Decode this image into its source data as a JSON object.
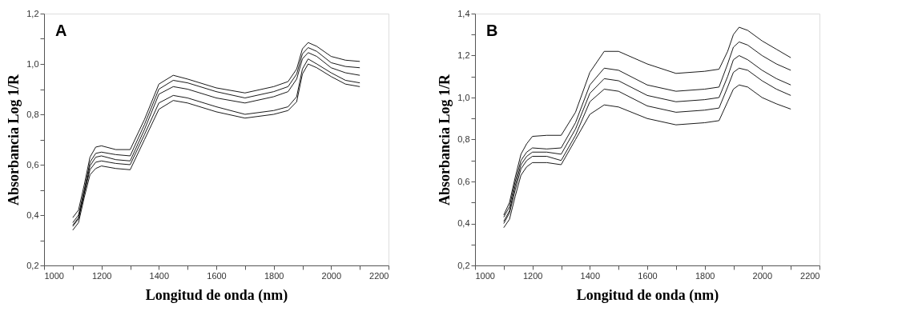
{
  "chart_data": [
    {
      "type": "line",
      "xlabel": "Longitud de onda (nm)",
      "ylabel": "Absorbancia Log 1/R",
      "annotations": [
        "A"
      ],
      "grid": false,
      "legend": false,
      "marker": "none",
      "line_style": "solid",
      "x": [
        1100,
        1120,
        1140,
        1160,
        1180,
        1200,
        1250,
        1300,
        1350,
        1400,
        1450,
        1500,
        1600,
        1700,
        1800,
        1850,
        1880,
        1900,
        1920,
        1950,
        2000,
        2050,
        2100
      ],
      "xlim": [
        1000,
        2200
      ],
      "ylim": [
        0.2,
        1.2
      ],
      "xticks": [
        1000,
        {
          "value": 1100,
          "label": null
        },
        1200,
        {
          "value": 1300,
          "label": null
        },
        1400,
        {
          "value": 1500,
          "label": null
        },
        1600,
        {
          "value": 1700,
          "label": null
        },
        1800,
        {
          "value": 1900,
          "label": null
        },
        2000,
        {
          "value": 2100,
          "label": null
        },
        2200
      ],
      "yticks": [
        {
          "value": 0.2,
          "label": "0,2"
        },
        {
          "value": 0.3,
          "label": null
        },
        {
          "value": 0.4,
          "label": "0,4"
        },
        {
          "value": 0.5,
          "label": null
        },
        {
          "value": 0.6,
          "label": "0,6"
        },
        {
          "value": 0.7,
          "label": null
        },
        {
          "value": 0.8,
          "label": "0,8"
        },
        {
          "value": 0.9,
          "label": null
        },
        {
          "value": 1.0,
          "label": "1,0"
        },
        {
          "value": 1.1,
          "label": null
        },
        {
          "value": 1.2,
          "label": "1,2"
        }
      ],
      "series": [
        {
          "color": "#000000",
          "values": [
            0.39,
            0.42,
            0.52,
            0.63,
            0.67,
            0.675,
            0.66,
            0.66,
            0.78,
            0.92,
            0.955,
            0.94,
            0.905,
            0.885,
            0.91,
            0.93,
            0.98,
            1.06,
            1.085,
            1.07,
            1.03,
            1.015,
            1.01
          ]
        },
        {
          "color": "#000000",
          "values": [
            0.37,
            0.4,
            0.5,
            0.61,
            0.645,
            0.65,
            0.64,
            0.635,
            0.76,
            0.9,
            0.935,
            0.925,
            0.89,
            0.865,
            0.89,
            0.91,
            0.96,
            1.04,
            1.065,
            1.05,
            1.005,
            0.99,
            0.985
          ]
        },
        {
          "color": "#000000",
          "values": [
            0.36,
            0.39,
            0.49,
            0.595,
            0.63,
            0.635,
            0.62,
            0.615,
            0.74,
            0.88,
            0.91,
            0.9,
            0.865,
            0.845,
            0.87,
            0.89,
            0.94,
            1.02,
            1.045,
            1.03,
            0.985,
            0.965,
            0.955
          ]
        },
        {
          "color": "#000000",
          "values": [
            0.355,
            0.385,
            0.485,
            0.58,
            0.61,
            0.615,
            0.605,
            0.6,
            0.72,
            0.845,
            0.875,
            0.865,
            0.83,
            0.8,
            0.815,
            0.83,
            0.87,
            0.98,
            1.02,
            1.0,
            0.965,
            0.935,
            0.925
          ]
        },
        {
          "color": "#000000",
          "values": [
            0.34,
            0.37,
            0.47,
            0.56,
            0.585,
            0.595,
            0.585,
            0.58,
            0.7,
            0.82,
            0.855,
            0.845,
            0.81,
            0.785,
            0.8,
            0.815,
            0.85,
            0.96,
            1.0,
            0.985,
            0.95,
            0.92,
            0.91
          ]
        }
      ]
    },
    {
      "type": "line",
      "xlabel": "Longitud de onda (nm)",
      "ylabel": "Absorbancia Log 1/R",
      "annotations": [
        "B"
      ],
      "grid": false,
      "legend": false,
      "marker": "none",
      "line_style": "solid",
      "x": [
        1100,
        1120,
        1140,
        1160,
        1180,
        1200,
        1250,
        1300,
        1350,
        1400,
        1450,
        1500,
        1600,
        1700,
        1800,
        1850,
        1880,
        1900,
        1920,
        1950,
        2000,
        2050,
        2100
      ],
      "xlim": [
        1000,
        2200
      ],
      "ylim": [
        0.2,
        1.4
      ],
      "xticks": [
        1000,
        {
          "value": 1100,
          "label": null
        },
        1200,
        {
          "value": 1300,
          "label": null
        },
        1400,
        {
          "value": 1500,
          "label": null
        },
        1600,
        {
          "value": 1700,
          "label": null
        },
        1800,
        {
          "value": 1900,
          "label": null
        },
        2000,
        {
          "value": 2100,
          "label": null
        },
        2200
      ],
      "yticks": [
        {
          "value": 0.2,
          "label": "0,2"
        },
        {
          "value": 0.3,
          "label": null
        },
        {
          "value": 0.4,
          "label": "0,4"
        },
        {
          "value": 0.5,
          "label": null
        },
        {
          "value": 0.6,
          "label": "0,6"
        },
        {
          "value": 0.7,
          "label": null
        },
        {
          "value": 0.8,
          "label": "0,8"
        },
        {
          "value": 0.9,
          "label": null
        },
        {
          "value": 1.0,
          "label": "1,0"
        },
        {
          "value": 1.1,
          "label": null
        },
        {
          "value": 1.2,
          "label": "1,2"
        },
        {
          "value": 1.3,
          "label": null
        },
        {
          "value": 1.4,
          "label": "1,4"
        }
      ],
      "series": [
        {
          "color": "#000000",
          "values": [
            0.44,
            0.5,
            0.62,
            0.73,
            0.78,
            0.815,
            0.82,
            0.82,
            0.93,
            1.12,
            1.22,
            1.22,
            1.16,
            1.115,
            1.125,
            1.135,
            1.22,
            1.3,
            1.335,
            1.32,
            1.27,
            1.23,
            1.19
          ]
        },
        {
          "color": "#000000",
          "values": [
            0.43,
            0.48,
            0.6,
            0.7,
            0.74,
            0.76,
            0.755,
            0.76,
            0.88,
            1.06,
            1.14,
            1.13,
            1.06,
            1.03,
            1.04,
            1.05,
            1.16,
            1.24,
            1.265,
            1.25,
            1.2,
            1.16,
            1.13
          ]
        },
        {
          "color": "#000000",
          "values": [
            0.41,
            0.46,
            0.58,
            0.68,
            0.72,
            0.74,
            0.74,
            0.73,
            0.85,
            1.02,
            1.09,
            1.08,
            1.01,
            0.98,
            0.99,
            1.0,
            1.1,
            1.18,
            1.2,
            1.18,
            1.13,
            1.09,
            1.06
          ]
        },
        {
          "color": "#000000",
          "values": [
            0.4,
            0.45,
            0.56,
            0.66,
            0.7,
            0.72,
            0.72,
            0.7,
            0.82,
            0.98,
            1.04,
            1.03,
            0.96,
            0.93,
            0.94,
            0.95,
            1.05,
            1.12,
            1.14,
            1.13,
            1.08,
            1.04,
            1.01
          ]
        },
        {
          "color": "#000000",
          "values": [
            0.38,
            0.42,
            0.53,
            0.63,
            0.67,
            0.69,
            0.69,
            0.68,
            0.8,
            0.92,
            0.965,
            0.955,
            0.9,
            0.87,
            0.88,
            0.89,
            0.98,
            1.04,
            1.06,
            1.05,
            1.0,
            0.97,
            0.945
          ]
        }
      ]
    }
  ]
}
